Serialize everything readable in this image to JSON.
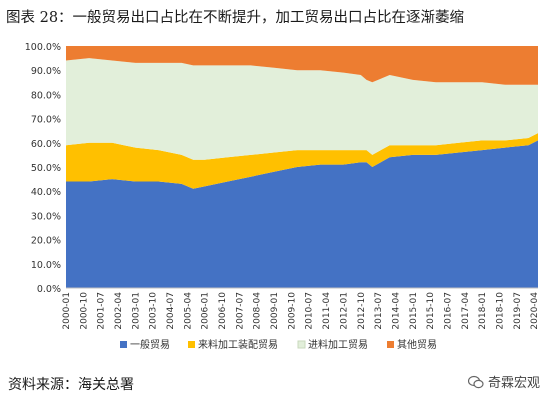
{
  "title": "图表 28：一般贸易出口占比在不断提升，加工贸易出口占比在逐渐萎缩",
  "source": "资料来源：海关总署",
  "watermark": "奇霖宏观",
  "chart_data": {
    "type": "area",
    "stacked": true,
    "grid": false,
    "legend_position": "bottom",
    "ylim": [
      0,
      100
    ],
    "y_ticks": [
      "0.0%",
      "10.0%",
      "20.0%",
      "30.0%",
      "40.0%",
      "50.0%",
      "60.0%",
      "70.0%",
      "80.0%",
      "90.0%",
      "100.0%"
    ],
    "x_tick_labels": [
      "2000-01",
      "2000-10",
      "2001-07",
      "2002-04",
      "2003-01",
      "2003-10",
      "2004-07",
      "2005-04",
      "2006-01",
      "2006-10",
      "2007-07",
      "2008-04",
      "2009-01",
      "2009-10",
      "2010-07",
      "2011-04",
      "2012-01",
      "2012-10",
      "2013-07",
      "2014-04",
      "2015-01",
      "2015-10",
      "2016-07",
      "2017-04",
      "2018-01",
      "2018-10",
      "2019-07",
      "2020-04"
    ],
    "x": [
      "2000-01",
      "2001-01",
      "2002-01",
      "2003-01",
      "2004-01",
      "2005-01",
      "2005-07",
      "2006-01",
      "2007-01",
      "2008-01",
      "2009-01",
      "2010-01",
      "2011-01",
      "2012-01",
      "2012-10",
      "2013-01",
      "2013-04",
      "2014-01",
      "2015-01",
      "2016-01",
      "2017-01",
      "2018-01",
      "2019-01",
      "2020-01",
      "2020-06"
    ],
    "series": [
      {
        "name": "一般贸易",
        "color": "#4472C4",
        "values": [
          44,
          44,
          45,
          44,
          44,
          43,
          41,
          42,
          44,
          46,
          48,
          50,
          51,
          51,
          52,
          52,
          50,
          54,
          55,
          55,
          56,
          57,
          58,
          59,
          61
        ]
      },
      {
        "name": "来料加工装配贸易",
        "color": "#FFC000",
        "values": [
          15,
          16,
          15,
          14,
          13,
          12,
          12,
          11,
          10,
          9,
          8,
          7,
          6,
          6,
          5,
          5,
          5,
          5,
          4,
          4,
          4,
          4,
          3,
          3,
          3
        ]
      },
      {
        "name": "进料加工贸易",
        "color": "#E2EFDA",
        "values": [
          35,
          35,
          34,
          35,
          36,
          38,
          39,
          39,
          38,
          37,
          35,
          33,
          33,
          32,
          31,
          29,
          30,
          29,
          27,
          26,
          25,
          24,
          23,
          22,
          20
        ]
      },
      {
        "name": "其他贸易",
        "color": "#ED7D31",
        "values": [
          6,
          5,
          6,
          7,
          7,
          7,
          8,
          8,
          8,
          8,
          9,
          10,
          10,
          11,
          12,
          14,
          15,
          12,
          14,
          15,
          15,
          15,
          16,
          16,
          16
        ]
      }
    ]
  }
}
